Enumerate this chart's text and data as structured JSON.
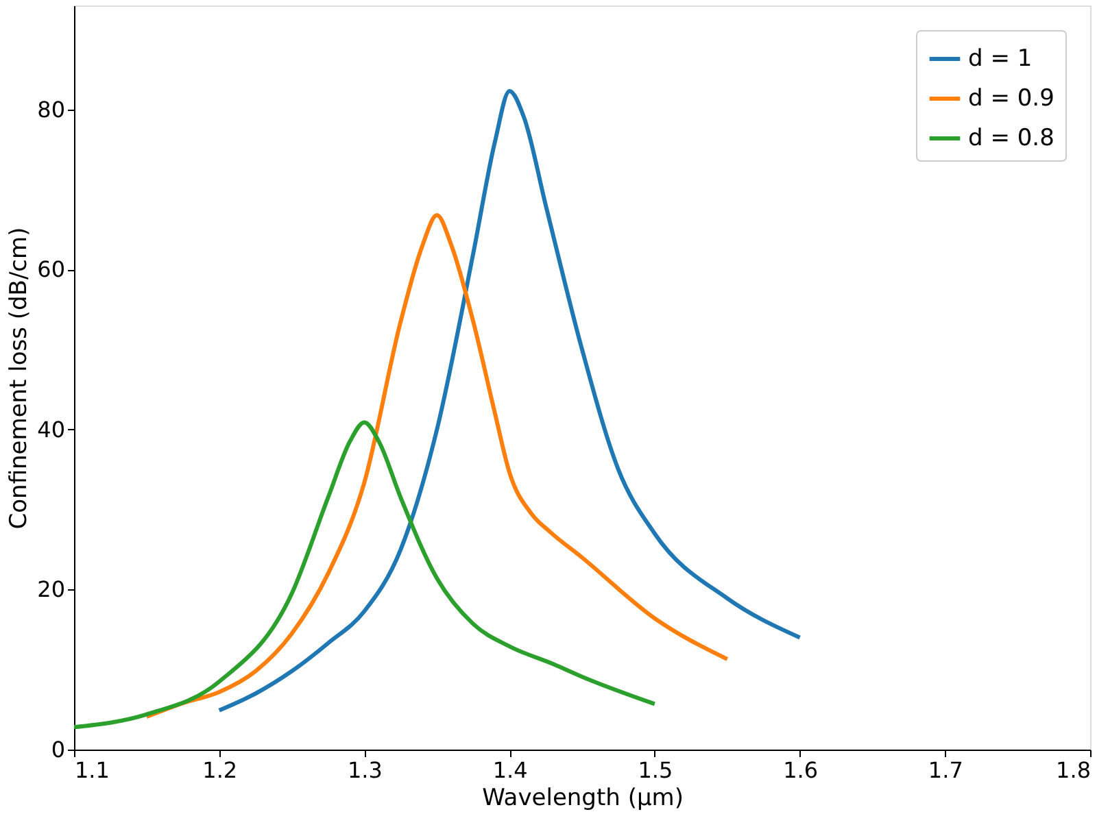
{
  "chart_data": {
    "type": "line",
    "xlabel": "Wavelength (μm)",
    "ylabel": "Confinement loss (dB/cm)",
    "xlim": [
      1.1,
      1.8
    ],
    "xticks": [
      1.1,
      1.2,
      1.3,
      1.4,
      1.5,
      1.6,
      1.7,
      1.8
    ],
    "ylim": [
      0,
      93
    ],
    "yticks": [
      0,
      20,
      40,
      60,
      80
    ],
    "grid": false,
    "legend": "top right",
    "marker": "none",
    "line_style": "solid",
    "series": [
      {
        "name": "d = 1",
        "color": "#1f77b4",
        "x": [
          1.2,
          1.225,
          1.25,
          1.275,
          1.3,
          1.325,
          1.35,
          1.375,
          1.39,
          1.4,
          1.41,
          1.425,
          1.45,
          1.475,
          1.5,
          1.55,
          1.6
        ],
        "values": [
          4.9,
          7,
          9.8,
          13.3,
          17.3,
          25,
          40,
          62,
          76,
          82.3,
          79,
          68,
          50,
          35,
          27,
          18.9,
          14
        ]
      },
      {
        "name": "d = 0.9",
        "color": "#ff7f0e",
        "x": [
          1.15,
          1.175,
          1.2,
          1.225,
          1.25,
          1.275,
          1.3,
          1.325,
          1.34,
          1.35,
          1.36,
          1.375,
          1.39,
          1.4,
          1.415,
          1.428,
          1.45,
          1.5,
          1.55
        ],
        "values": [
          4.1,
          5.8,
          7.2,
          9.8,
          14.5,
          22,
          33.4,
          53.5,
          63,
          66.8,
          63,
          53.5,
          42,
          34.6,
          29.5,
          27.2,
          24,
          16.4,
          11.3
        ]
      },
      {
        "name": "d = 0.8",
        "color": "#2ca02c",
        "x": [
          1.1,
          1.15,
          1.2,
          1.25,
          1.275,
          1.29,
          1.3,
          1.31,
          1.325,
          1.35,
          1.375,
          1.4,
          1.43,
          1.45,
          1.5
        ],
        "values": [
          2.8,
          4.4,
          8.5,
          19.5,
          31.5,
          38.5,
          40.9,
          38.5,
          31.5,
          21.4,
          15.7,
          12.9,
          10.7,
          9.1,
          5.7
        ]
      }
    ]
  }
}
